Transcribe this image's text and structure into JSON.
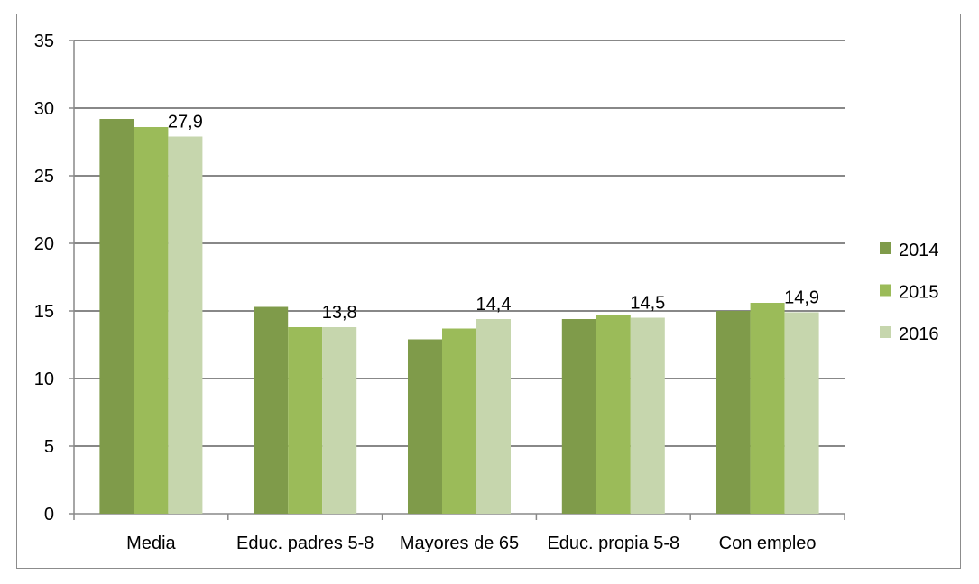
{
  "chart_data": {
    "type": "bar",
    "categories": [
      "Media",
      "Educ. padres 5-8",
      "Mayores de 65",
      "Educ. propia 5-8",
      "Con empleo"
    ],
    "series": [
      {
        "name": "2014",
        "color": "#7f9b4a",
        "values": [
          29.2,
          15.3,
          12.9,
          14.4,
          15.0
        ]
      },
      {
        "name": "2015",
        "color": "#9bbb59",
        "values": [
          28.6,
          13.8,
          13.7,
          14.7,
          15.6
        ]
      },
      {
        "name": "2016",
        "color": "#c6d6ad",
        "values": [
          27.9,
          13.8,
          14.4,
          14.5,
          14.9
        ]
      }
    ],
    "data_labels": {
      "series": "2016",
      "labels": [
        "27,9",
        "13,8",
        "14,4",
        "14,5",
        "14,9"
      ]
    },
    "yticks": [
      "0",
      "5",
      "10",
      "15",
      "20",
      "25",
      "30",
      "35"
    ],
    "ylim": [
      0,
      35
    ],
    "grid": true,
    "legend": "right"
  }
}
